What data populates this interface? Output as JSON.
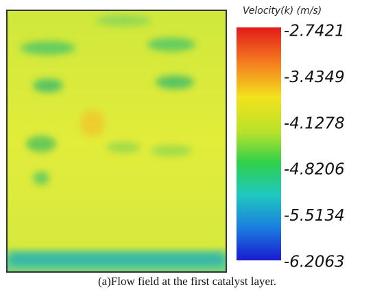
{
  "figure": {
    "colorbar": {
      "title": "Velocity(k) (m/s)",
      "ticks": [
        "-2.7421",
        "-3.4349",
        "-4.1278",
        "-4.8206",
        "-5.5134",
        "-6.2063"
      ]
    },
    "caption": "(a)Flow field at the first catalyst layer."
  }
}
